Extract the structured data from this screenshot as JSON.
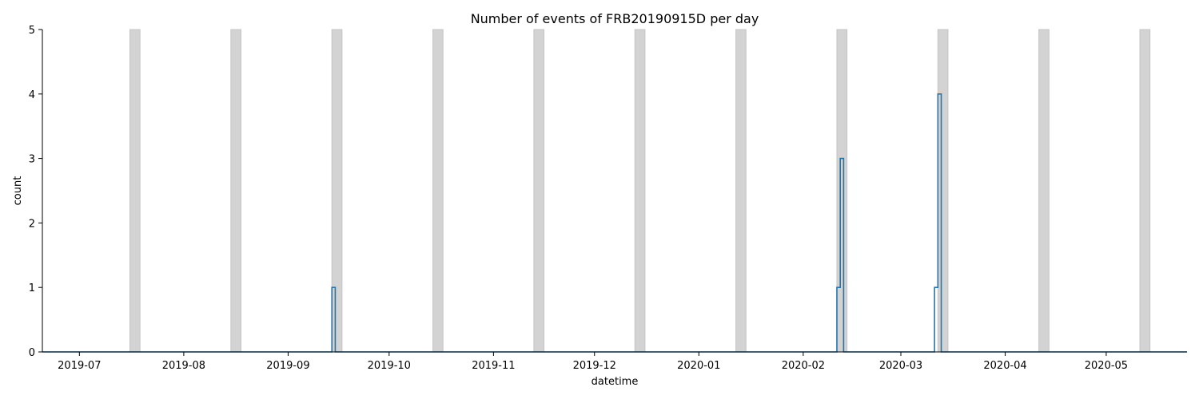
{
  "chart_data": {
    "type": "line",
    "style": "step-histogram",
    "title": "Number of events of FRB20190915D per day",
    "xlabel": "datetime",
    "ylabel": "count",
    "xlim": [
      "2019-06-20",
      "2020-05-25"
    ],
    "ylim": [
      0,
      5
    ],
    "grid": false,
    "x_ticks": [
      "2019-07",
      "2019-08",
      "2019-09",
      "2019-10",
      "2019-11",
      "2019-12",
      "2020-01",
      "2020-02",
      "2020-03",
      "2020-04",
      "2020-05"
    ],
    "y_ticks": [
      "0",
      "1",
      "2",
      "3",
      "4",
      "5"
    ],
    "shaded_bands": [
      [
        "2019-07-16",
        "2019-07-19"
      ],
      [
        "2019-08-15",
        "2019-08-18"
      ],
      [
        "2019-09-14",
        "2019-09-17"
      ],
      [
        "2019-10-14",
        "2019-10-17"
      ],
      [
        "2019-11-13",
        "2019-11-16"
      ],
      [
        "2019-12-13",
        "2019-12-16"
      ],
      [
        "2020-01-12",
        "2020-01-15"
      ],
      [
        "2020-02-11",
        "2020-02-14"
      ],
      [
        "2020-03-12",
        "2020-03-15"
      ],
      [
        "2020-04-11",
        "2020-04-14"
      ],
      [
        "2020-05-11",
        "2020-05-14"
      ]
    ],
    "series": [
      {
        "color": "#1f77b4",
        "points": [
          {
            "date": "2019-09-14",
            "count": 1
          },
          {
            "date": "2020-02-11",
            "count": 1
          },
          {
            "date": "2020-02-12",
            "count": 3
          },
          {
            "date": "2020-03-11",
            "count": 1
          },
          {
            "date": "2020-03-12",
            "count": 4
          }
        ]
      }
    ],
    "band_color": "#d3d3d3"
  }
}
